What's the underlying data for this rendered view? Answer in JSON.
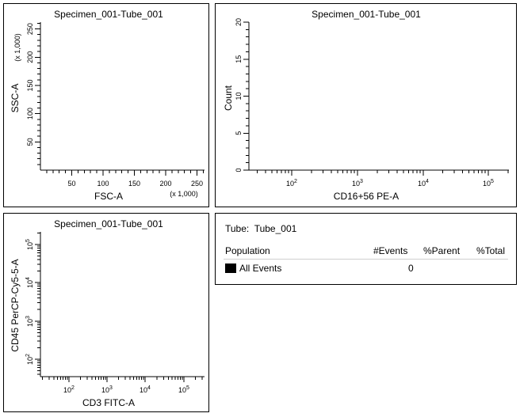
{
  "plots": {
    "p1": {
      "title": "Specimen_001-Tube_001",
      "xlabel": "FSC-A",
      "ylabel": "SSC-A",
      "xmult": "(x 1,000)",
      "ymult": "(x 1,000)",
      "xticks": [
        "50",
        "100",
        "150",
        "200",
        "250"
      ],
      "yticks": [
        "50",
        "100",
        "150",
        "200",
        "250"
      ]
    },
    "p2": {
      "title": "Specimen_001-Tube_001",
      "xlabel": "CD16+56 PE-A",
      "ylabel": "Count",
      "xticks": [
        "10",
        "10",
        "10",
        "10"
      ],
      "xexps": [
        "2",
        "3",
        "4",
        "5"
      ],
      "yticks": [
        "0",
        "5",
        "10",
        "15",
        "20"
      ]
    },
    "p3": {
      "title": "Specimen_001-Tube_001",
      "xlabel": "CD3 FITC-A",
      "ylabel": "CD45 PerCP-Cy5-5-A",
      "xticks": [
        "10",
        "10",
        "10",
        "10"
      ],
      "xexps": [
        "2",
        "3",
        "4",
        "5"
      ],
      "yticks": [
        "10",
        "10",
        "10",
        "10"
      ],
      "yexps": [
        "2",
        "3",
        "4",
        "5"
      ]
    }
  },
  "population": {
    "tube_label": "Tube:",
    "tube_name": "Tube_001",
    "headers": [
      "Population",
      "#Events",
      "%Parent",
      "%Total"
    ],
    "rows": [
      {
        "name": "All Events",
        "events": "0",
        "parent": "",
        "total": ""
      }
    ],
    "swatch_color": "#000000"
  },
  "chart_data": [
    {
      "type": "scatter",
      "title": "Specimen_001-Tube_001",
      "xlabel": "FSC-A",
      "ylabel": "SSC-A",
      "x": [],
      "y": [],
      "xlim": [
        0,
        262
      ],
      "ylim": [
        0,
        262
      ],
      "grid": false
    },
    {
      "type": "bar",
      "title": "Specimen_001-Tube_001",
      "xlabel": "CD16+56 PE-A",
      "ylabel": "Count",
      "x": [],
      "values": [],
      "ylim": [
        0,
        20
      ],
      "xscale": "log",
      "grid": false
    },
    {
      "type": "scatter",
      "title": "Specimen_001-Tube_001",
      "xlabel": "CD3 FITC-A",
      "ylabel": "CD45 PerCP-Cy5-5-A",
      "x": [],
      "y": [],
      "xscale": "log",
      "yscale": "log",
      "grid": false
    }
  ]
}
